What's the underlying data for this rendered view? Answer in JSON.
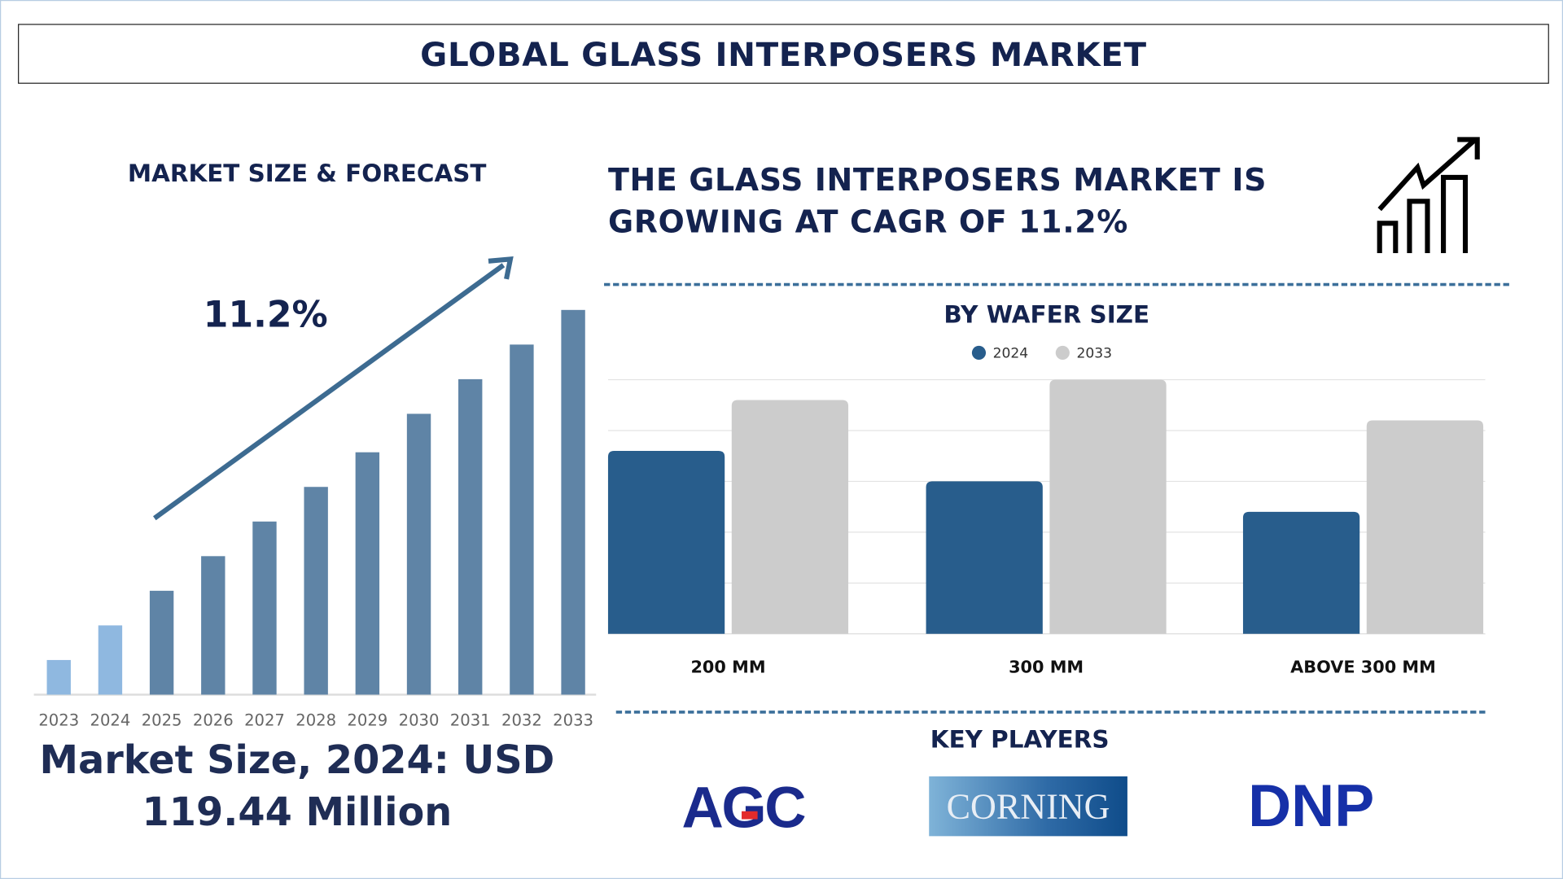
{
  "title": "GLOBAL GLASS INTERPOSERS MARKET",
  "left": {
    "heading": "MARKET SIZE & FORECAST",
    "cagr_label": "11.2%",
    "market_size_line1": "Market Size, 2024: USD",
    "market_size_line2": "119.44 Million"
  },
  "right": {
    "headline_line1": "THE GLASS INTERPOSERS MARKET IS",
    "headline_line2": "GROWING AT CAGR OF 11.2%",
    "icon": "growth-chart-icon",
    "key_players_heading": "KEY PLAYERS",
    "key_players": [
      "AGC",
      "CORNING",
      "DNP"
    ]
  },
  "colors": {
    "navy": "#14234f",
    "bar_hist": "#8fb8e0",
    "bar_forecast": "#5f84a6",
    "series_2024": "#285d8c",
    "series_2033": "#cccccc",
    "arrow": "#3d6b91"
  },
  "chart_data": [
    {
      "type": "bar",
      "title": "MARKET SIZE & FORECAST",
      "categories": [
        "2023",
        "2024",
        "2025",
        "2026",
        "2027",
        "2028",
        "2029",
        "2030",
        "2031",
        "2032",
        "2033"
      ],
      "values": [
        9,
        18,
        27,
        36,
        45,
        54,
        63,
        73,
        82,
        91,
        100
      ],
      "value_note": "relative bar height, % of 2033",
      "annotation": "11.2%",
      "grid": false
    },
    {
      "type": "bar",
      "title": "BY WAFER SIZE",
      "categories": [
        "200 MM",
        "300 MM",
        "ABOVE 300 MM"
      ],
      "series": [
        {
          "name": "2024",
          "values": [
            3.6,
            3.0,
            2.4
          ]
        },
        {
          "name": "2033",
          "values": [
            4.6,
            5.0,
            4.2
          ]
        }
      ],
      "ylim": [
        0,
        5
      ],
      "grid": true,
      "legend": "top"
    }
  ]
}
